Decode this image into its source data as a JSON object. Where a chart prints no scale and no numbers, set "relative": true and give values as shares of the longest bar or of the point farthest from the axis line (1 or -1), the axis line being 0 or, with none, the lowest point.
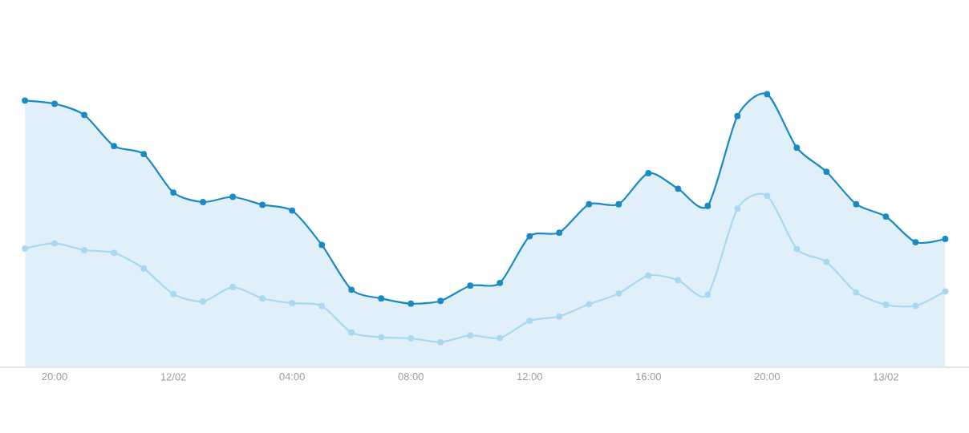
{
  "chart_data": {
    "type": "line",
    "relative": true,
    "marker": "circle",
    "line_style": "solid",
    "categories": [
      null,
      "20:00",
      null,
      null,
      null,
      "12/02",
      null,
      null,
      null,
      "04:00",
      null,
      null,
      null,
      "08:00",
      null,
      null,
      null,
      "12:00",
      null,
      null,
      null,
      "16:00",
      null,
      null,
      null,
      "20:00",
      null,
      null,
      null,
      "13/02",
      null,
      null
    ],
    "series": [
      {
        "type": "area",
        "color": "#1a8ac6",
        "values": [
          0.977,
          0.965,
          0.924,
          0.81,
          0.781,
          0.64,
          0.605,
          0.624,
          0.595,
          0.574,
          0.448,
          0.284,
          0.252,
          0.233,
          0.243,
          0.299,
          0.309,
          0.48,
          0.493,
          0.597,
          0.597,
          0.711,
          0.654,
          0.591,
          0.92,
          1.0,
          0.804,
          0.716,
          0.597,
          0.552,
          0.458,
          0.47
        ]
      },
      {
        "color": "#a9d8f0",
        "values": [
          0.435,
          0.454,
          0.429,
          0.419,
          0.362,
          0.268,
          0.241,
          0.294,
          0.252,
          0.235,
          0.225,
          0.127,
          0.11,
          0.106,
          0.092,
          0.117,
          0.107,
          0.17,
          0.186,
          0.231,
          0.27,
          0.336,
          0.319,
          0.266,
          0.581,
          0.628,
          0.433,
          0.386,
          0.274,
          0.229,
          0.225,
          0.278
        ]
      }
    ]
  }
}
